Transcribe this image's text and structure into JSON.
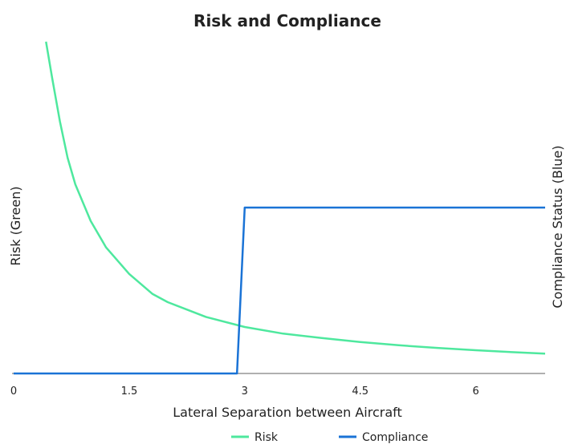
{
  "chart_data": {
    "type": "line",
    "title": "Risk and Compliance",
    "xlabel": "Lateral Separation between Aircraft",
    "ylabel_left": "Risk (Green)",
    "ylabel_right": "Compliance Status (Blue)",
    "xlim": [
      0,
      6.9
    ],
    "xticks": [
      "0",
      "1.5",
      "3",
      "4.5",
      "6"
    ],
    "xtick_values": [
      0,
      1.5,
      3,
      4.5,
      6
    ],
    "y_left_lim": [
      0,
      1.0
    ],
    "y_right_lim": [
      0,
      1.0
    ],
    "grid": false,
    "legend_position": "bottom-center",
    "series": [
      {
        "name": "Risk",
        "color": "#4ee89e",
        "axis": "left",
        "x": [
          0.42,
          0.5,
          0.6,
          0.7,
          0.8,
          1.0,
          1.2,
          1.5,
          1.8,
          2.0,
          2.5,
          3.0,
          3.5,
          4.0,
          4.5,
          5.0,
          5.5,
          6.0,
          6.5,
          6.9
        ],
        "y": [
          1.0,
          0.89,
          0.76,
          0.65,
          0.57,
          0.46,
          0.38,
          0.3,
          0.24,
          0.215,
          0.17,
          0.14,
          0.12,
          0.107,
          0.095,
          0.085,
          0.077,
          0.07,
          0.064,
          0.06
        ]
      },
      {
        "name": "Compliance",
        "color": "#1a73d6",
        "axis": "right",
        "x": [
          0,
          2.9,
          3.0,
          6.9
        ],
        "y": [
          0,
          0,
          0.5,
          0.5
        ]
      }
    ]
  }
}
